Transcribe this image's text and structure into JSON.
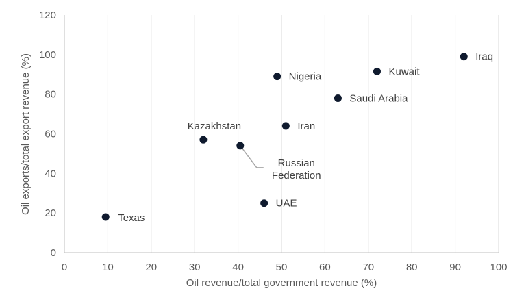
{
  "chart_data": {
    "type": "scatter",
    "title": "",
    "xlabel": "Oil revenue/total  government  revenue  (%)",
    "ylabel": "Oil exports/total  export  revenue  (%)",
    "xlim": [
      0,
      100
    ],
    "ylim": [
      0,
      120
    ],
    "xticks": [
      0,
      10,
      20,
      30,
      40,
      50,
      60,
      70,
      80,
      90,
      100
    ],
    "yticks": [
      0,
      20,
      40,
      60,
      80,
      100,
      120
    ],
    "grid": "vertical",
    "marker_color": "#0f1a2e",
    "points": [
      {
        "label": "Iraq",
        "x": 92,
        "y": 99
      },
      {
        "label": "Kuwait",
        "x": 72,
        "y": 91.5
      },
      {
        "label": "Nigeria",
        "x": 49,
        "y": 89
      },
      {
        "label": "Saudi Arabia",
        "x": 63,
        "y": 78
      },
      {
        "label": "Iran",
        "x": 51,
        "y": 64
      },
      {
        "label": "Kazakhstan",
        "x": 32,
        "y": 57
      },
      {
        "label": "Russian Federation",
        "x": 40.5,
        "y": 54
      },
      {
        "label": "UAE",
        "x": 46,
        "y": 25
      },
      {
        "label": "Texas",
        "x": 9.5,
        "y": 18
      }
    ]
  }
}
